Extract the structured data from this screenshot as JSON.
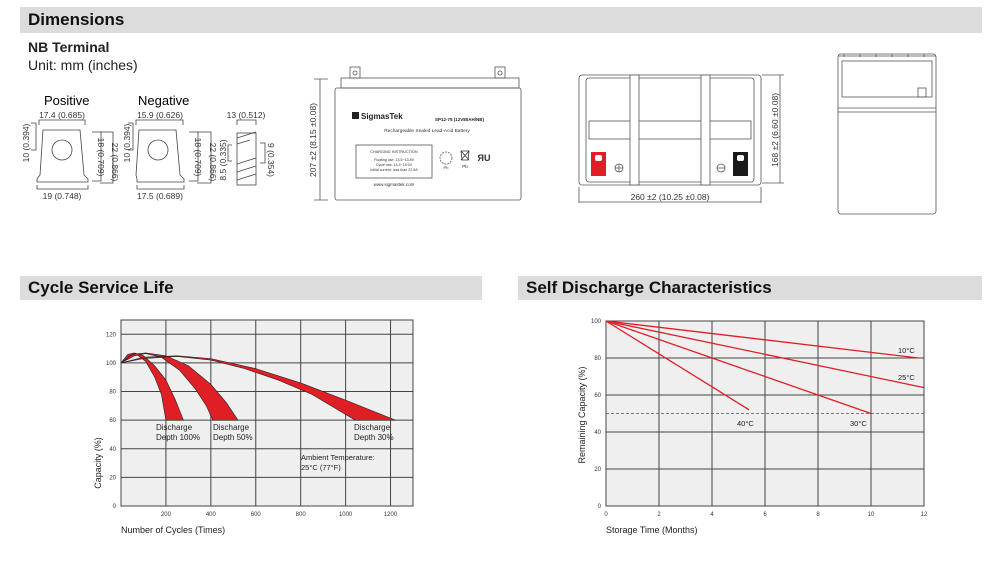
{
  "sections": {
    "dimensions": "Dimensions",
    "cycle": "Cycle Service Life",
    "self_discharge": "Self Discharge Characteristics"
  },
  "terminal": {
    "title": "NB Terminal",
    "unit": "Unit: mm (inches)",
    "positive": "Positive",
    "negative": "Negative",
    "pos_top": "17.4 (0.685)",
    "pos_side": "10 (0.394)",
    "pos_h1": "18 (0.709)",
    "pos_h2": "22 (0.866)",
    "pos_bottom": "19 (0.748)",
    "neg_top": "15.9 (0.626)",
    "neg_side": "10 (0.394)",
    "neg_h1": "18 (0.709)",
    "neg_h2": "22 (0.866)",
    "neg_bottom": "17.5 (0.689)",
    "prof_top": "13 (0.512)",
    "prof_left": "8.5 (0.335)",
    "prof_right": "9 (0.354)"
  },
  "battery": {
    "height_dim": "207 ±2 (8.15 ±0.08)",
    "brand": "SigmasTek",
    "model": "SP12-75 (12V80AH/NB)",
    "subtitle": "Rechargeable Sealed Lead-Acid Battery",
    "charging_title": "CHARGING INSTRUCTION",
    "charging_lines": [
      "Floating use: 13.5~13.8V",
      "Cycle use: 14.4~15.0V",
      "Initial current: less than 22.5A"
    ],
    "pb": "Pb",
    "website": "www.sigmastek.com",
    "top_height_dim": "168 ±2 (6.60 ±0.08)",
    "top_width_dim": "260 ±2 (10.25 ±0.08)",
    "colors": {
      "positive_terminal": "#e01e25",
      "negative_terminal": "#1a1a1a"
    }
  },
  "chart_data": [
    {
      "type": "area",
      "title": "Cycle Service Life",
      "xlabel": "Number of Cycles (Times)",
      "ylabel": "Capacity (%)",
      "xlim": [
        0,
        1300
      ],
      "ylim": [
        0,
        130
      ],
      "xticks": [
        200,
        400,
        600,
        800,
        1000,
        1200
      ],
      "yticks": [
        0,
        20,
        40,
        60,
        80,
        100,
        120
      ],
      "grid": true,
      "color": "#e01e25",
      "series": [
        {
          "name": "Discharge Depth 100%",
          "label1": "Discharge",
          "label2": "Depth 100%",
          "outer": [
            [
              0,
              100
            ],
            [
              30,
              106
            ],
            [
              60,
              107
            ],
            [
              100,
              105
            ],
            [
              150,
              98
            ],
            [
              200,
              88
            ],
            [
              240,
              75
            ],
            [
              278,
              60
            ]
          ],
          "inner": [
            [
              0,
              100
            ],
            [
              40,
              105
            ],
            [
              70,
              106
            ],
            [
              110,
              101
            ],
            [
              150,
              90
            ],
            [
              180,
              78
            ],
            [
              200,
              60
            ]
          ]
        },
        {
          "name": "Discharge Depth 50%",
          "label1": "Discharge",
          "label2": "Depth 50%",
          "outer": [
            [
              0,
              100
            ],
            [
              50,
              106
            ],
            [
              110,
              107
            ],
            [
              200,
              105
            ],
            [
              300,
              98
            ],
            [
              400,
              85
            ],
            [
              470,
              72
            ],
            [
              521,
              60
            ]
          ],
          "inner": [
            [
              0,
              100
            ],
            [
              60,
              105
            ],
            [
              110,
              106.5
            ],
            [
              180,
              104
            ],
            [
              260,
              95
            ],
            [
              330,
              82
            ],
            [
              380,
              70
            ],
            [
              409,
              60
            ]
          ]
        },
        {
          "name": "Discharge Depth 30%",
          "label1": "Discharge",
          "label2": "Depth 30%",
          "outer": [
            [
              0,
              100
            ],
            [
              100,
              104
            ],
            [
              250,
              105
            ],
            [
              400,
              103
            ],
            [
              600,
              96
            ],
            [
              800,
              86
            ],
            [
              1000,
              74
            ],
            [
              1222,
              60
            ]
          ],
          "inner": [
            [
              0,
              100
            ],
            [
              100,
              103
            ],
            [
              250,
              104.5
            ],
            [
              400,
              102
            ],
            [
              550,
              96
            ],
            [
              700,
              88
            ],
            [
              850,
              78
            ],
            [
              1043,
              60
            ]
          ]
        }
      ],
      "annotation": [
        "Ambient Temperature:",
        "25°C (77°F)"
      ]
    },
    {
      "type": "line",
      "title": "Self Discharge Characteristics",
      "xlabel": "Storage Time (Months)",
      "ylabel": "Remaining Capacity (%)",
      "xlim": [
        0,
        12
      ],
      "ylim": [
        0,
        100
      ],
      "xticks": [
        0,
        2,
        4,
        6,
        8,
        10,
        12
      ],
      "yticks": [
        0,
        20,
        40,
        60,
        80,
        100
      ],
      "grid": true,
      "reference_line": 50,
      "color": "#e01e25",
      "series": [
        {
          "name": "10°C",
          "x": [
            0,
            11.8
          ],
          "y": [
            100,
            80
          ]
        },
        {
          "name": "25°C",
          "x": [
            0,
            12
          ],
          "y": [
            100,
            64
          ]
        },
        {
          "name": "30°C",
          "x": [
            0,
            10
          ],
          "y": [
            100,
            50
          ]
        },
        {
          "name": "40°C",
          "x": [
            0,
            5.4
          ],
          "y": [
            100,
            52
          ]
        }
      ]
    }
  ]
}
